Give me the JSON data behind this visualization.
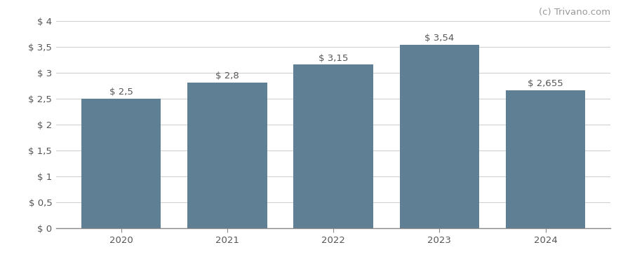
{
  "categories": [
    "2020",
    "2021",
    "2022",
    "2023",
    "2024"
  ],
  "values": [
    2.5,
    2.8,
    3.15,
    3.54,
    2.655
  ],
  "bar_labels": [
    "$ 2,5",
    "$ 2,8",
    "$ 3,15",
    "$ 3,54",
    "$ 2,655"
  ],
  "bar_color": "#5f7f94",
  "background_color": "#ffffff",
  "ylim": [
    0,
    4.0
  ],
  "yticks": [
    0,
    0.5,
    1.0,
    1.5,
    2.0,
    2.5,
    3.0,
    3.5,
    4.0
  ],
  "ytick_labels": [
    "$ 0",
    "$ 0,5",
    "$ 1",
    "$ 1,5",
    "$ 2",
    "$ 2,5",
    "$ 3",
    "$ 3,5",
    "$ 4"
  ],
  "watermark": "(c) Trivano.com",
  "grid_color": "#d0d0d0",
  "bar_width": 0.75,
  "label_fontsize": 9.5,
  "tick_fontsize": 9.5,
  "watermark_fontsize": 9.5
}
